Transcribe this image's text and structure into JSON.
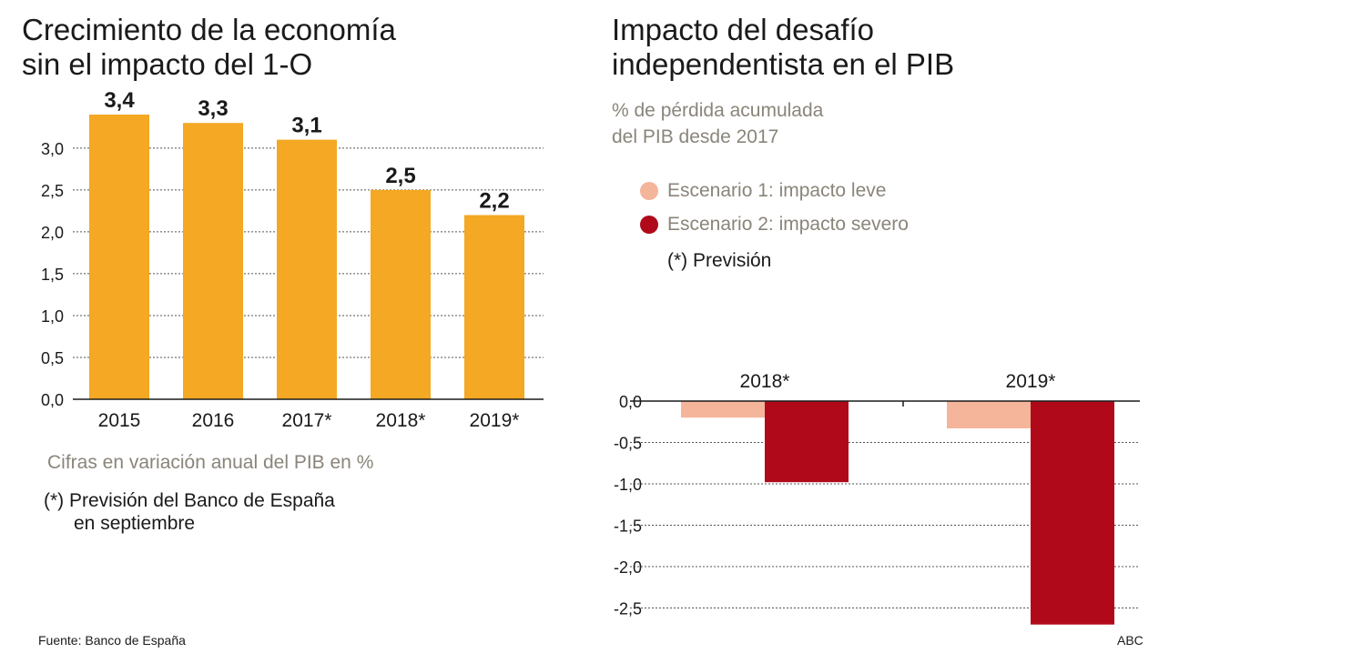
{
  "left_title": [
    "Crecimiento de la economía",
    "sin el impacto del 1-O"
  ],
  "right_title": [
    "Impacto del desafío",
    "independentista en el PIB"
  ],
  "right_subtitle": [
    "% de pérdida acumulada",
    "del PIB desde 2017"
  ],
  "legend": {
    "items": [
      {
        "label": "Escenario 1: impacto leve",
        "color": "#f4b59b"
      },
      {
        "label": "Escenario 2: impacto severo",
        "color": "#b00a1a"
      }
    ],
    "note": "(*) Previsión"
  },
  "left_note": "Cifras en variación anual del PIB en %",
  "left_footnote": [
    "(*) Previsión del Banco de España",
    "en septiembre"
  ],
  "source": "Fuente: Banco de España",
  "credit": "ABC",
  "colors": {
    "bar": "#f4a823",
    "grid": "#555555",
    "axis": "#1a1a1a"
  },
  "chart_data": [
    {
      "type": "bar",
      "title": "Crecimiento de la economía sin el impacto del 1-O",
      "categories": [
        "2015",
        "2016",
        "2017*",
        "2018*",
        "2019*"
      ],
      "values": [
        3.4,
        3.3,
        3.1,
        2.5,
        2.2
      ],
      "value_labels": [
        "3,4",
        "3,3",
        "3,1",
        "2,5",
        "2,2"
      ],
      "yticks": [
        0,
        0.5,
        1.0,
        1.5,
        2.0,
        2.5,
        3.0
      ],
      "ytick_labels": [
        "0,0",
        "0,5",
        "1,0",
        "1,5",
        "2,0",
        "2,5",
        "3,0"
      ],
      "ylim": [
        0,
        3.4
      ],
      "grid": true
    },
    {
      "type": "bar",
      "title": "Impacto del desafío independentista en el PIB",
      "categories": [
        "2018*",
        "2019*"
      ],
      "series": [
        {
          "name": "Escenario 1: impacto leve",
          "values": [
            -0.2,
            -0.33
          ],
          "color": "#f4b59b"
        },
        {
          "name": "Escenario 2: impacto severo",
          "values": [
            -0.98,
            -2.7
          ],
          "color": "#b00a1a"
        }
      ],
      "yticks": [
        0,
        -0.5,
        -1.0,
        -1.5,
        -2.0,
        -2.5
      ],
      "ytick_labels": [
        "0,0",
        "-0,5",
        "-1,0",
        "-1,5",
        "-2,0",
        "-2,5"
      ],
      "ylim": [
        -2.7,
        0
      ],
      "grid": true
    }
  ]
}
